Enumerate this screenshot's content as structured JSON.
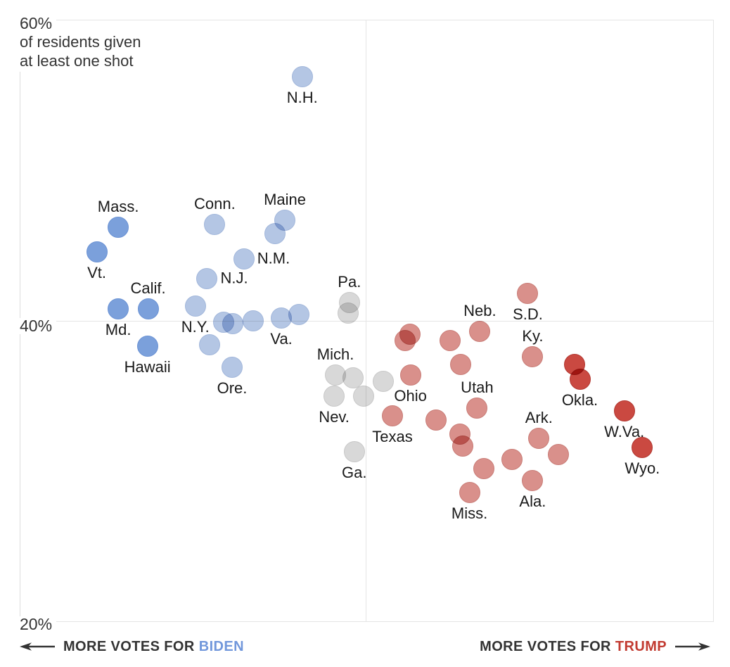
{
  "chart_data": {
    "type": "scatter",
    "description_visible_text_only": true,
    "y_axis": {
      "min": 20,
      "max": 60,
      "ticks": [
        "60%",
        "40%",
        "20%"
      ],
      "tick_values": [
        60,
        40,
        20
      ],
      "subtitle_line1": "of residents given",
      "subtitle_line2": "at least one shot",
      "unit": "percent of residents given at least one shot"
    },
    "x_axis": {
      "left_prefix": "MORE VOTES FOR",
      "left_name": "BIDEN",
      "right_prefix": "MORE VOTES FOR",
      "right_name": "TRUMP",
      "center_divider": true,
      "numeric_scale_shown": false
    },
    "colors": {
      "biden_text": "#7197DB",
      "trump_text": "#C23B31",
      "axis_text": "#333333",
      "gridline": "#E5E5E5"
    },
    "groups": {
      "biden_strong": {
        "fill": "#7BA0DB",
        "stroke": "#6A92D4"
      },
      "biden_light": {
        "fill": "#B4C6E4",
        "stroke": "#A2B7DB"
      },
      "swing": {
        "fill": "#D8D8D8",
        "stroke": "#C8C8C8"
      },
      "trump_light": {
        "fill": "#D9908B",
        "stroke": "#C97D77"
      },
      "trump_strong": {
        "fill": "#CA4941",
        "stroke": "#B23730"
      }
    },
    "points": [
      {
        "label": "Mass.",
        "label_side": "above",
        "group": "biden_strong",
        "x_pos": 14.2,
        "vax": 46.2
      },
      {
        "label": "Vt.",
        "label_side": "below",
        "group": "biden_strong",
        "x_pos": 11.1,
        "vax": 44.6
      },
      {
        "label": "Md.",
        "label_side": "below",
        "group": "biden_strong",
        "x_pos": 14.2,
        "vax": 40.8
      },
      {
        "label": "Calif.",
        "label_side": "above",
        "group": "biden_strong",
        "x_pos": 18.5,
        "vax": 40.8
      },
      {
        "label": "Hawaii",
        "label_side": "below",
        "group": "biden_strong",
        "x_pos": 18.4,
        "vax": 38.3
      },
      {
        "label": "N.H.",
        "label_side": "below",
        "group": "biden_light",
        "x_pos": 40.7,
        "vax": 56.2
      },
      {
        "label": "Conn.",
        "label_side": "above",
        "group": "biden_light",
        "x_pos": 28.1,
        "vax": 46.4
      },
      {
        "label": "Maine",
        "label_side": "above",
        "group": "biden_light",
        "x_pos": 38.2,
        "vax": 46.7
      },
      {
        "label": "",
        "label_side": "",
        "group": "biden_light",
        "x_pos": 36.8,
        "vax": 45.8
      },
      {
        "label": "N.M.",
        "label_side": "right",
        "group": "biden_light",
        "x_pos": 32.3,
        "vax": 44.1
      },
      {
        "label": "N.J.",
        "label_side": "right",
        "group": "biden_light",
        "x_pos": 27.0,
        "vax": 42.8
      },
      {
        "label": "N.Y.",
        "label_side": "below",
        "group": "biden_light",
        "x_pos": 25.3,
        "vax": 41.0
      },
      {
        "label": "",
        "label_side": "",
        "group": "biden_light",
        "x_pos": 29.4,
        "vax": 39.9
      },
      {
        "label": "",
        "label_side": "",
        "group": "biden_light",
        "x_pos": 30.7,
        "vax": 39.8
      },
      {
        "label": "",
        "label_side": "",
        "group": "biden_light",
        "x_pos": 33.6,
        "vax": 40.0
      },
      {
        "label": "Va.",
        "label_side": "below",
        "group": "biden_light",
        "x_pos": 37.7,
        "vax": 40.2
      },
      {
        "label": "",
        "label_side": "",
        "group": "biden_light",
        "x_pos": 40.2,
        "vax": 40.4
      },
      {
        "label": "",
        "label_side": "",
        "group": "biden_light",
        "x_pos": 27.4,
        "vax": 38.4
      },
      {
        "label": "Ore.",
        "label_side": "below",
        "group": "biden_light",
        "x_pos": 30.6,
        "vax": 36.9
      },
      {
        "label": "Pa.",
        "label_side": "above",
        "group": "swing",
        "x_pos": 47.5,
        "vax": 41.2
      },
      {
        "label": "",
        "label_side": "",
        "group": "swing",
        "x_pos": 47.3,
        "vax": 40.5
      },
      {
        "label": "Mich.",
        "label_side": "above",
        "group": "swing",
        "x_pos": 45.5,
        "vax": 36.4
      },
      {
        "label": "",
        "label_side": "",
        "group": "swing",
        "x_pos": 48.0,
        "vax": 36.2
      },
      {
        "label": "",
        "label_side": "",
        "group": "swing",
        "x_pos": 52.4,
        "vax": 36.0
      },
      {
        "label": "Nev.",
        "label_side": "below",
        "group": "swing",
        "x_pos": 45.3,
        "vax": 35.0
      },
      {
        "label": "",
        "label_side": "",
        "group": "swing",
        "x_pos": 49.5,
        "vax": 35.0
      },
      {
        "label": "Ga.",
        "label_side": "below",
        "group": "swing",
        "x_pos": 48.2,
        "vax": 31.3
      },
      {
        "label": "S.D.",
        "label_side": "below",
        "group": "trump_light",
        "x_pos": 73.2,
        "vax": 41.8
      },
      {
        "label": "Neb.",
        "label_side": "above",
        "group": "trump_light",
        "x_pos": 66.3,
        "vax": 39.3
      },
      {
        "label": "",
        "label_side": "",
        "group": "trump_light",
        "x_pos": 56.2,
        "vax": 39.1
      },
      {
        "label": "",
        "label_side": "",
        "group": "trump_light",
        "x_pos": 55.5,
        "vax": 38.7
      },
      {
        "label": "",
        "label_side": "",
        "group": "trump_light",
        "x_pos": 62.0,
        "vax": 38.7
      },
      {
        "label": "",
        "label_side": "",
        "group": "trump_light",
        "x_pos": 63.5,
        "vax": 37.1
      },
      {
        "label": "Ky.",
        "label_side": "above",
        "group": "trump_light",
        "x_pos": 73.9,
        "vax": 37.6
      },
      {
        "label": "Ohio",
        "label_side": "below",
        "group": "trump_light",
        "x_pos": 56.3,
        "vax": 36.4
      },
      {
        "label": "Texas",
        "label_side": "below",
        "group": "trump_light",
        "x_pos": 53.7,
        "vax": 33.7
      },
      {
        "label": "",
        "label_side": "",
        "group": "trump_light",
        "x_pos": 60.0,
        "vax": 33.4
      },
      {
        "label": "Utah",
        "label_side": "above",
        "group": "trump_light",
        "x_pos": 65.9,
        "vax": 34.2
      },
      {
        "label": "",
        "label_side": "",
        "group": "trump_light",
        "x_pos": 63.4,
        "vax": 32.5
      },
      {
        "label": "",
        "label_side": "",
        "group": "trump_light",
        "x_pos": 63.8,
        "vax": 31.7
      },
      {
        "label": "Ark.",
        "label_side": "above",
        "group": "trump_light",
        "x_pos": 74.8,
        "vax": 32.2
      },
      {
        "label": "",
        "label_side": "",
        "group": "trump_light",
        "x_pos": 77.6,
        "vax": 31.1
      },
      {
        "label": "",
        "label_side": "",
        "group": "trump_light",
        "x_pos": 70.9,
        "vax": 30.8
      },
      {
        "label": "Ala.",
        "label_side": "below",
        "group": "trump_light",
        "x_pos": 73.9,
        "vax": 29.4
      },
      {
        "label": "",
        "label_side": "",
        "group": "trump_light",
        "x_pos": 66.9,
        "vax": 30.2
      },
      {
        "label": "Miss.",
        "label_side": "below",
        "group": "trump_light",
        "x_pos": 64.8,
        "vax": 28.6
      },
      {
        "label": "",
        "label_side": "",
        "group": "trump_strong",
        "x_pos": 79.9,
        "vax": 37.1
      },
      {
        "label": "Okla.",
        "label_side": "below",
        "group": "trump_strong",
        "x_pos": 80.7,
        "vax": 36.1
      },
      {
        "label": "W.Va.",
        "label_side": "below",
        "group": "trump_strong",
        "x_pos": 87.1,
        "vax": 34.0
      },
      {
        "label": "Wyo.",
        "label_side": "below",
        "group": "trump_strong",
        "x_pos": 89.7,
        "vax": 31.6
      }
    ]
  }
}
